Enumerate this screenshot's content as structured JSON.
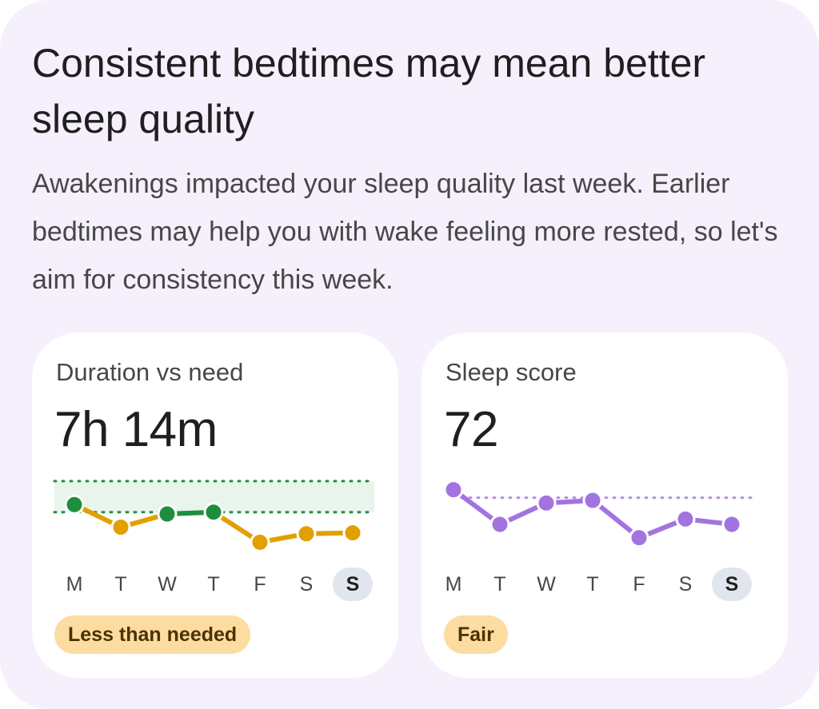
{
  "card_insight": {
    "title": "Consistent bedtimes may mean better sleep quality",
    "body": "Awakenings impacted your sleep quality last week. Earlier bedtimes may help you with wake feeling more rested, so let's aim for consistency this week."
  },
  "duration_card": {
    "title": "Duration vs need",
    "value": "7h 14m",
    "status": "Less than needed",
    "days": [
      "M",
      "T",
      "W",
      "T",
      "F",
      "S",
      "S"
    ],
    "today_index": 6
  },
  "score_card": {
    "title": "Sleep score",
    "value": "72",
    "status": "Fair",
    "days": [
      "M",
      "T",
      "W",
      "T",
      "F",
      "S",
      "S"
    ],
    "today_index": 6
  },
  "colors": {
    "background": "#f5f0fc",
    "on_target": "#1e8e3e",
    "below_target": "#e2a000",
    "score_line": "#a374e0",
    "need_band": "#e8f4ec",
    "status_badge": "#fcdca0"
  },
  "chart_data": [
    {
      "type": "line",
      "x": [
        "M",
        "T",
        "W",
        "T",
        "F",
        "S",
        "S"
      ],
      "series": [
        {
          "values": [
            0.95,
            0.71,
            0.85,
            0.87,
            0.55,
            0.64,
            0.65
          ],
          "status": [
            "met",
            "below",
            "met",
            "met",
            "below",
            "below",
            "below"
          ]
        }
      ],
      "ylim": [
        0,
        1
      ],
      "need_band": [
        0.85,
        1.35
      ],
      "grid": false
    },
    {
      "type": "line",
      "x": [
        "M",
        "T",
        "W",
        "T",
        "F",
        "S",
        "S"
      ],
      "series": [
        {
          "values": [
            85,
            72,
            80,
            81,
            67,
            74,
            72
          ]
        }
      ],
      "reference": 82,
      "ylim": [
        60,
        90
      ],
      "grid": false
    }
  ]
}
